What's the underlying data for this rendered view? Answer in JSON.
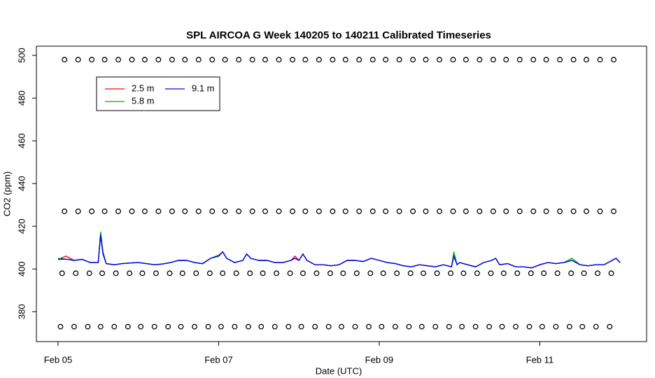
{
  "chart_data": {
    "type": "line",
    "title": "SPL AIRCOA G  Week 140205 to 140211  Calibrated Timeseries",
    "x_label": "Date (UTC)",
    "y_label": "CO2 (ppm)",
    "xlim": [
      -0.27,
      7.33
    ],
    "ylim": [
      366,
      504.3
    ],
    "xticks": [
      {
        "value": 0,
        "label": "Feb 05"
      },
      {
        "value": 2,
        "label": "Feb 07"
      },
      {
        "value": 4,
        "label": "Feb 09"
      },
      {
        "value": 6,
        "label": "Feb 11"
      }
    ],
    "yticks": [
      380,
      400,
      420,
      440,
      460,
      480,
      500
    ],
    "x": [
      0,
      0.1,
      0.2,
      0.3,
      0.4,
      0.5,
      0.53,
      0.56,
      0.6,
      0.7,
      0.8,
      0.9,
      1.0,
      1.1,
      1.2,
      1.3,
      1.4,
      1.5,
      1.6,
      1.7,
      1.8,
      1.9,
      2.0,
      2.05,
      2.1,
      2.2,
      2.3,
      2.35,
      2.4,
      2.5,
      2.6,
      2.7,
      2.8,
      2.9,
      2.95,
      3.0,
      3.05,
      3.1,
      3.2,
      3.3,
      3.4,
      3.5,
      3.6,
      3.7,
      3.8,
      3.9,
      4.0,
      4.1,
      4.2,
      4.3,
      4.4,
      4.5,
      4.6,
      4.7,
      4.8,
      4.9,
      4.93,
      4.97,
      5.0,
      5.1,
      5.2,
      5.3,
      5.4,
      5.45,
      5.5,
      5.6,
      5.7,
      5.8,
      5.9,
      6.0,
      6.1,
      6.2,
      6.3,
      6.4,
      6.5,
      6.6,
      6.7,
      6.8,
      6.9,
      6.95,
      7.0
    ],
    "series": [
      {
        "name": "2.5 m",
        "color": "#ff0000",
        "values": [
          404.5,
          406,
          404,
          404.5,
          403,
          403,
          416,
          407,
          402.5,
          402,
          402.5,
          402.8,
          403,
          402.5,
          402,
          402.3,
          403,
          404,
          404,
          403,
          402.5,
          405,
          406,
          408,
          405,
          403,
          404,
          407,
          405,
          404,
          404,
          403,
          403,
          404,
          406,
          404,
          407,
          404,
          402,
          402,
          401.5,
          402,
          404,
          404,
          403.5,
          405,
          404,
          403,
          402.5,
          401.5,
          401,
          402,
          401.5,
          401,
          402,
          401,
          406,
          402,
          403,
          402,
          401,
          403,
          404,
          405,
          402,
          402.5,
          401,
          401,
          400.5,
          402,
          403,
          402.5,
          403,
          404,
          402,
          401.5,
          402,
          402,
          404,
          405,
          403
        ]
      },
      {
        "name": "5.8 m",
        "color": "#00b000",
        "values": [
          405,
          404.6,
          404,
          404.5,
          403,
          403,
          417.5,
          408,
          402.5,
          402,
          402.5,
          402.8,
          403,
          402.5,
          402,
          402.3,
          403,
          404,
          404,
          403,
          402.5,
          405,
          406.5,
          408,
          405,
          403,
          404,
          407,
          405,
          404,
          404,
          403,
          403,
          404,
          405,
          404,
          407,
          404,
          402,
          402,
          401.5,
          402,
          404,
          404,
          403.5,
          405,
          404,
          403,
          402.5,
          401.5,
          401,
          402,
          401.5,
          401,
          402,
          401,
          408,
          402,
          403,
          402,
          401,
          403,
          404,
          405,
          402,
          402.5,
          401,
          401,
          400.5,
          402,
          403,
          402.5,
          403,
          405,
          402,
          401.5,
          402,
          402,
          404,
          405,
          403
        ]
      },
      {
        "name": "9.1 m",
        "color": "#0000ff",
        "values": [
          404.5,
          404.6,
          404,
          404.5,
          403,
          403,
          416,
          407,
          402.5,
          402,
          402.5,
          402.8,
          403,
          402.5,
          402,
          402.3,
          403,
          404,
          404,
          403,
          402.5,
          405,
          406,
          408,
          405,
          403,
          404,
          407,
          405,
          404,
          404,
          403,
          403,
          404,
          405,
          404,
          407,
          404,
          402,
          402,
          401.5,
          402,
          404,
          404,
          403.5,
          405,
          404,
          403,
          402.5,
          401.5,
          401,
          402,
          401.5,
          401,
          402,
          401,
          406,
          402,
          403,
          402,
          401,
          403,
          404,
          405,
          402,
          402.5,
          401,
          401,
          400.5,
          402,
          403,
          402.5,
          403,
          404,
          402,
          401.5,
          402,
          402,
          404,
          405,
          403
        ]
      },
      {
        "color": "#000000",
        "marker": "circle",
        "x": [
          0.08,
          0.25,
          0.42,
          0.58,
          0.75,
          0.92,
          1.08,
          1.25,
          1.42,
          1.58,
          1.75,
          1.92,
          2.08,
          2.25,
          2.42,
          2.58,
          2.75,
          2.92,
          3.08,
          3.25,
          3.42,
          3.58,
          3.75,
          3.92,
          4.08,
          4.25,
          4.42,
          4.58,
          4.75,
          4.92,
          5.08,
          5.25,
          5.42,
          5.58,
          5.75,
          5.92,
          6.08,
          6.25,
          6.42,
          6.58,
          6.75,
          6.92
        ],
        "values": [
          498,
          498,
          498,
          498,
          498,
          498,
          498,
          498,
          498,
          498,
          498,
          498,
          498,
          498,
          498,
          498,
          498,
          498,
          498,
          498,
          498,
          498,
          498,
          498,
          498,
          498,
          498,
          498,
          498,
          498,
          498,
          498,
          498,
          498,
          498,
          498,
          498,
          498,
          498,
          498,
          498,
          498
        ]
      },
      {
        "color": "#000000",
        "marker": "circle",
        "x": [
          0.08,
          0.25,
          0.42,
          0.58,
          0.75,
          0.92,
          1.08,
          1.25,
          1.42,
          1.58,
          1.75,
          1.92,
          2.08,
          2.25,
          2.42,
          2.58,
          2.75,
          2.92,
          3.08,
          3.25,
          3.42,
          3.58,
          3.75,
          3.92,
          4.08,
          4.25,
          4.42,
          4.58,
          4.75,
          4.92,
          5.08,
          5.25,
          5.42,
          5.58,
          5.75,
          5.92,
          6.08,
          6.25,
          6.42,
          6.58,
          6.75,
          6.92
        ],
        "values": [
          427,
          427,
          427,
          427,
          427,
          427,
          427,
          427,
          427,
          427,
          427,
          427,
          427,
          427,
          427,
          427,
          427,
          427,
          427,
          427,
          427,
          427,
          427,
          427,
          427,
          427,
          427,
          427,
          427,
          427,
          427,
          427,
          427,
          427,
          427,
          427,
          427,
          427,
          427,
          427,
          427,
          427
        ]
      },
      {
        "color": "#000000",
        "marker": "circle",
        "x": [
          0.05,
          0.22,
          0.39,
          0.55,
          0.72,
          0.89,
          1.05,
          1.22,
          1.39,
          1.55,
          1.72,
          1.89,
          2.05,
          2.22,
          2.39,
          2.55,
          2.72,
          2.89,
          3.05,
          3.22,
          3.39,
          3.55,
          3.72,
          3.89,
          4.05,
          4.22,
          4.39,
          4.55,
          4.72,
          4.89,
          5.05,
          5.22,
          5.39,
          5.55,
          5.72,
          5.89,
          6.05,
          6.22,
          6.39,
          6.55,
          6.72,
          6.89
        ],
        "values": [
          398,
          398,
          398,
          398,
          398,
          398,
          398,
          398,
          398,
          398,
          398,
          398,
          398,
          398,
          398,
          398,
          398,
          398,
          398,
          398,
          398,
          398,
          398,
          398,
          398,
          398,
          398,
          398,
          398,
          398,
          398,
          398,
          398,
          398,
          398,
          398,
          398,
          398,
          398,
          398,
          398,
          398
        ]
      },
      {
        "color": "#000000",
        "marker": "circle",
        "x": [
          0.03,
          0.2,
          0.37,
          0.53,
          0.7,
          0.87,
          1.03,
          1.2,
          1.37,
          1.53,
          1.7,
          1.87,
          2.03,
          2.2,
          2.37,
          2.53,
          2.7,
          2.87,
          3.03,
          3.2,
          3.37,
          3.53,
          3.7,
          3.87,
          4.03,
          4.2,
          4.37,
          4.53,
          4.7,
          4.87,
          5.03,
          5.2,
          5.37,
          5.53,
          5.7,
          5.87,
          6.03,
          6.2,
          6.37,
          6.53,
          6.7,
          6.87
        ],
        "values": [
          373,
          373,
          373,
          373,
          373,
          373,
          373,
          373,
          373,
          373,
          373,
          373,
          373,
          373,
          373,
          373,
          373,
          373,
          373,
          373,
          373,
          373,
          373,
          373,
          373,
          373,
          373,
          373,
          373,
          373,
          373,
          373,
          373,
          373,
          373,
          373,
          373,
          373,
          373,
          373,
          373,
          373
        ]
      }
    ]
  }
}
